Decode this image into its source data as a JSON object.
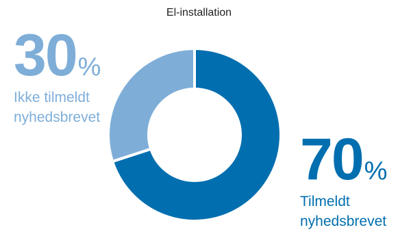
{
  "chart_data": {
    "type": "pie",
    "title": "El-installation",
    "donut": true,
    "slices": [
      {
        "label_line1": "Tilmeldt",
        "label_line2": "nyhedsbrevet",
        "value": 70,
        "display": "70",
        "unit": "%",
        "color": "#006eaf"
      },
      {
        "label_line1": "Ikke tilmeldt",
        "label_line2": "nyhedsbrevet",
        "value": 30,
        "display": "30",
        "unit": "%",
        "color": "#7eaed8"
      }
    ]
  }
}
